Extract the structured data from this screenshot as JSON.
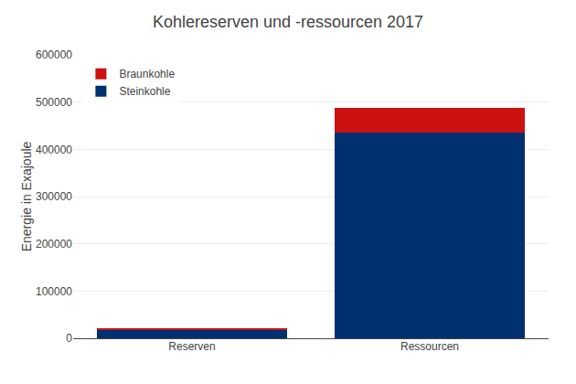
{
  "chart_data": {
    "type": "bar",
    "title": "Kohlereserven und -ressourcen 2017",
    "categories": [
      "Reserven",
      "Ressourcen"
    ],
    "series": [
      {
        "name": "Steinkohle",
        "color": "#003070",
        "values": [
          17000,
          435000
        ]
      },
      {
        "name": "Braunkohle",
        "color": "#cc1111",
        "values": [
          4000,
          52000
        ]
      }
    ],
    "ylabel": "Energie in Exajoule",
    "ylim": [
      0,
      600000
    ],
    "yticks": [
      0,
      100000,
      200000,
      300000,
      400000,
      500000,
      600000
    ],
    "stacked": true,
    "grid": true,
    "legend": "upper left"
  }
}
